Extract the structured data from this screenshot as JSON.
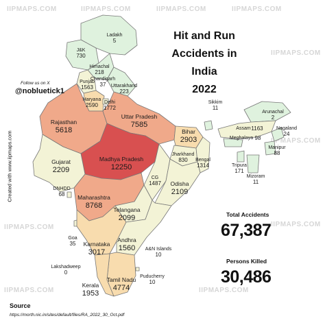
{
  "title_lines": [
    "Hit and Run",
    "Accidents in India",
    "2022"
  ],
  "watermark": "IIPMAPS.COM",
  "follow_text": "Follow us on X",
  "handle": "@nobluetick1",
  "credit": "Created with www.iipmaps.com",
  "source_label": "Source",
  "source_url": "https://morth.nic.in/sites/default/files/RA_2022_30_Oct.pdf",
  "totals": {
    "accidents_label": "Total Accidents",
    "accidents_value": "67,387",
    "killed_label": "Persons Killed",
    "killed_value": "30,486"
  },
  "regions": [
    {
      "name": "Ladakh",
      "value": "5"
    },
    {
      "name": "J&K",
      "value": "730"
    },
    {
      "name": "Himachal",
      "value": "218"
    },
    {
      "name": "Punjab",
      "value": "1563"
    },
    {
      "name": "Chandigarh",
      "value": "37"
    },
    {
      "name": "Uttarakhand",
      "value": "223"
    },
    {
      "name": "Haryana",
      "value": "2590"
    },
    {
      "name": "Delhi",
      "value": "1772"
    },
    {
      "name": "Rajasthan",
      "value": "5618"
    },
    {
      "name": "Uttar Pradesh",
      "value": "7585"
    },
    {
      "name": "Bihar",
      "value": "2903"
    },
    {
      "name": "Sikkim",
      "value": "11"
    },
    {
      "name": "Arunachal",
      "value": "2"
    },
    {
      "name": "Assam",
      "value": "1163"
    },
    {
      "name": "Nagaland",
      "value": "24"
    },
    {
      "name": "Meghalaya",
      "value": "98"
    },
    {
      "name": "Manipur",
      "value": "88"
    },
    {
      "name": "Tripura",
      "value": "171"
    },
    {
      "name": "Mizoram",
      "value": "11"
    },
    {
      "name": "Gujarat",
      "value": "2209"
    },
    {
      "name": "DNHDD",
      "value": "68"
    },
    {
      "name": "Madhya Pradesh",
      "value": "12250"
    },
    {
      "name": "Jharkhand",
      "value": "830"
    },
    {
      "name": "Bengal",
      "value": "1314"
    },
    {
      "name": "CG",
      "value": "1487"
    },
    {
      "name": "Odisha",
      "value": "2109"
    },
    {
      "name": "Maharashtra",
      "value": "8768"
    },
    {
      "name": "Telangana",
      "value": "2099"
    },
    {
      "name": "Goa",
      "value": "35"
    },
    {
      "name": "Karnataka",
      "value": "3017"
    },
    {
      "name": "Andhra",
      "value": "1560"
    },
    {
      "name": "A&N Islands",
      "value": "10"
    },
    {
      "name": "Lakshadweep",
      "value": "0"
    },
    {
      "name": "Tamil Nadu",
      "value": "4774"
    },
    {
      "name": "Puducherry",
      "value": "10"
    },
    {
      "name": "Kerala",
      "value": "1953"
    }
  ],
  "colors": {
    "lowest": "#dff2de",
    "low": "#f3f3d6",
    "mid": "#f8dcae",
    "high": "#f0a98a",
    "highest": "#d85050",
    "border": "#777777"
  }
}
